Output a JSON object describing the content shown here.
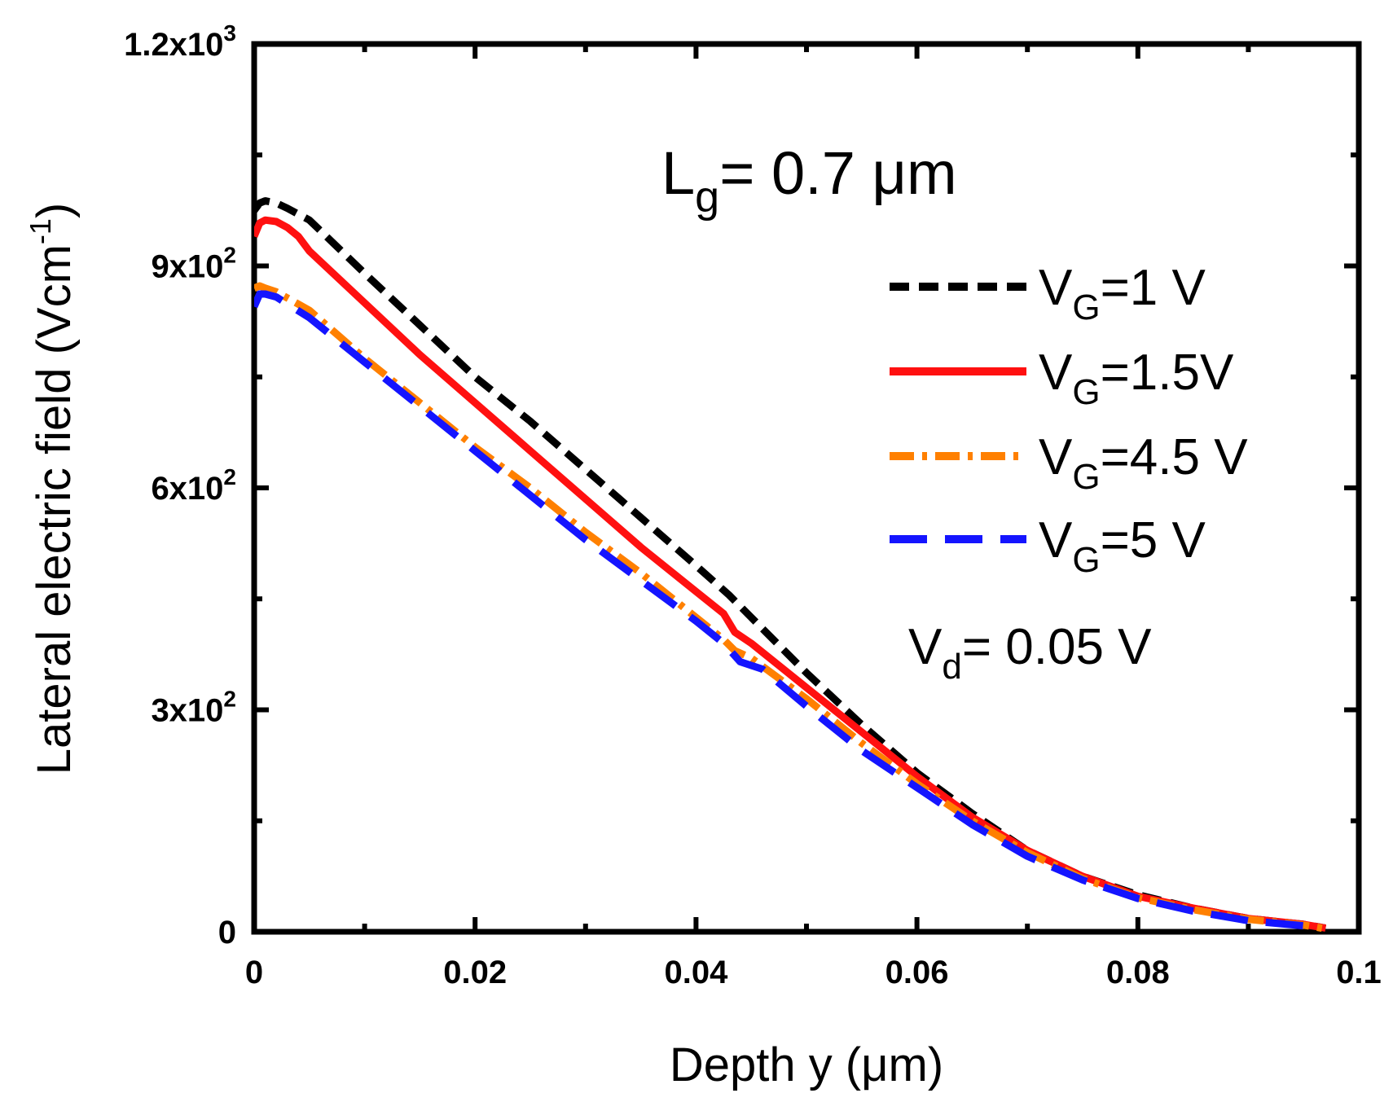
{
  "chart_data": {
    "type": "line",
    "title": "",
    "xlabel": "Depth y (μm)",
    "ylabel": "Lateral electric field (Vcm",
    "ylabel_sup": "-1",
    "ylabel_end": ")",
    "xlim": [
      0,
      0.1
    ],
    "ylim": [
      0,
      1200
    ],
    "grid": false,
    "legend_position": "right",
    "x_ticks": [
      {
        "value": 0,
        "label": "0"
      },
      {
        "value": 0.02,
        "label": "0.02"
      },
      {
        "value": 0.04,
        "label": "0.04"
      },
      {
        "value": 0.06,
        "label": "0.06"
      },
      {
        "value": 0.08,
        "label": "0.08"
      },
      {
        "value": 0.1,
        "label": "0.1"
      }
    ],
    "y_ticks": [
      {
        "value": 0,
        "base": "0",
        "sup": ""
      },
      {
        "value": 300,
        "base": "3x10",
        "sup": "2"
      },
      {
        "value": 600,
        "base": "6x10",
        "sup": "2"
      },
      {
        "value": 900,
        "base": "9x10",
        "sup": "2"
      },
      {
        "value": 1200,
        "base": "1.2x10",
        "sup": "3"
      }
    ],
    "annotations": {
      "gate_length": {
        "main": "L",
        "sub": "g",
        "rest": "= 0.7 μm"
      },
      "drain_voltage": {
        "main": "V",
        "sub": "d",
        "rest": "= 0.05 V"
      }
    },
    "series": [
      {
        "name": "VG=1 V",
        "label_main": "V",
        "label_sub": "G",
        "label_rest": "=1 V",
        "color": "#000000",
        "dash": "short-dash",
        "x": [
          0,
          0.0005,
          0.001,
          0.002,
          0.003,
          0.005,
          0.01,
          0.015,
          0.02,
          0.025,
          0.03,
          0.035,
          0.04,
          0.043,
          0.045,
          0.05,
          0.055,
          0.06,
          0.065,
          0.07,
          0.075,
          0.08,
          0.085,
          0.09,
          0.095,
          0.097
        ],
        "y": [
          975,
          985,
          988,
          985,
          978,
          962,
          890,
          820,
          750,
          690,
          625,
          560,
          495,
          455,
          425,
          350,
          280,
          215,
          160,
          110,
          75,
          50,
          32,
          18,
          10,
          5
        ]
      },
      {
        "name": "VG=1.5V",
        "label_main": "V",
        "label_sub": "G",
        "label_rest": "=1.5V",
        "color": "#ff1010",
        "dash": "solid",
        "x": [
          0,
          0.0005,
          0.001,
          0.002,
          0.003,
          0.004,
          0.005,
          0.01,
          0.015,
          0.02,
          0.025,
          0.03,
          0.035,
          0.04,
          0.0425,
          0.0435,
          0.045,
          0.05,
          0.055,
          0.06,
          0.065,
          0.07,
          0.075,
          0.08,
          0.085,
          0.09,
          0.095,
          0.097
        ],
        "y": [
          940,
          958,
          962,
          960,
          952,
          940,
          920,
          850,
          780,
          715,
          650,
          585,
          520,
          460,
          430,
          405,
          390,
          330,
          270,
          210,
          155,
          110,
          75,
          48,
          32,
          18,
          10,
          5
        ]
      },
      {
        "name": "VG=4.5 V",
        "label_main": "V",
        "label_sub": "G",
        "label_rest": "=4.5 V",
        "color": "#ff8000",
        "dash": "dash-dot",
        "x": [
          0,
          0.0005,
          0.001,
          0.002,
          0.005,
          0.01,
          0.015,
          0.02,
          0.025,
          0.03,
          0.035,
          0.04,
          0.0425,
          0.0435,
          0.045,
          0.05,
          0.055,
          0.06,
          0.065,
          0.07,
          0.075,
          0.08,
          0.085,
          0.09,
          0.095,
          0.097
        ],
        "y": [
          870,
          873,
          870,
          865,
          840,
          775,
          715,
          655,
          600,
          540,
          485,
          425,
          395,
          380,
          370,
          315,
          255,
          200,
          150,
          107,
          72,
          46,
          30,
          17,
          9,
          4
        ]
      },
      {
        "name": "VG=5 V",
        "label_main": "V",
        "label_sub": "G",
        "label_rest": "=5 V",
        "color": "#1414ff",
        "dash": "long-dash",
        "x": [
          0,
          0.0005,
          0.001,
          0.002,
          0.005,
          0.01,
          0.015,
          0.02,
          0.025,
          0.03,
          0.035,
          0.04,
          0.0425,
          0.044,
          0.046,
          0.05,
          0.055,
          0.06,
          0.065,
          0.07,
          0.075,
          0.08,
          0.085,
          0.09,
          0.095
        ],
        "y": [
          845,
          862,
          862,
          858,
          830,
          770,
          710,
          650,
          590,
          530,
          475,
          420,
          390,
          365,
          355,
          305,
          245,
          195,
          145,
          102,
          70,
          45,
          28,
          15,
          8
        ]
      }
    ]
  }
}
